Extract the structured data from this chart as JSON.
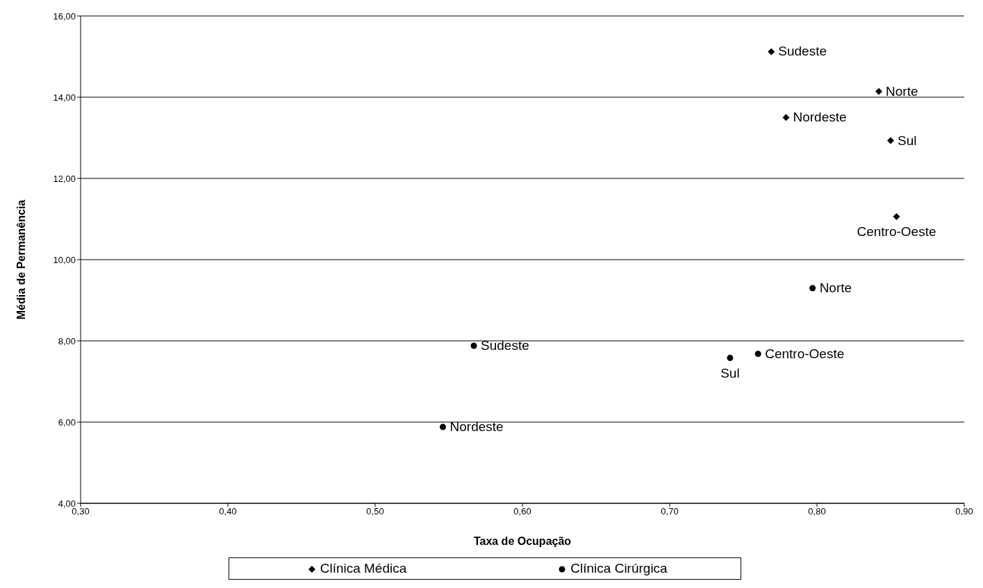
{
  "chart_data": {
    "type": "scatter",
    "xlabel": "Taxa de Ocupação",
    "ylabel": "Média de Permanência",
    "xlim": [
      0.3,
      0.9
    ],
    "ylim": [
      4,
      16
    ],
    "xticks": [
      {
        "value": 0.3,
        "label": "0,30"
      },
      {
        "value": 0.4,
        "label": "0,40"
      },
      {
        "value": 0.5,
        "label": "0,50"
      },
      {
        "value": 0.6,
        "label": "0,60"
      },
      {
        "value": 0.7,
        "label": "0,70"
      },
      {
        "value": 0.8,
        "label": "0,80"
      },
      {
        "value": 0.9,
        "label": "0,90"
      }
    ],
    "yticks": [
      {
        "value": 4,
        "label": "4,00"
      },
      {
        "value": 6,
        "label": "6,00"
      },
      {
        "value": 8,
        "label": "8,00"
      },
      {
        "value": 10,
        "label": "10,00"
      },
      {
        "value": 12,
        "label": "12,00"
      },
      {
        "value": 14,
        "label": "14,00"
      },
      {
        "value": 16,
        "label": "16,00"
      }
    ],
    "grid": "y",
    "legend": "bottom",
    "series": [
      {
        "name": "Clínica Médica",
        "color": "#000000",
        "marker": "diamond",
        "x": [
          0.769,
          0.842,
          0.779,
          0.85,
          0.854
        ],
        "values": [
          15.12,
          14.14,
          13.5,
          12.93,
          11.06
        ]
      },
      {
        "name": "Clínica Cirúrgica",
        "color": "#000000",
        "marker": "circle",
        "x": [
          0.797,
          0.567,
          0.741,
          0.76,
          0.546
        ],
        "values": [
          9.3,
          7.88,
          7.58,
          7.68,
          5.88
        ]
      }
    ],
    "annotations": [
      {
        "text": "Sudeste",
        "x": 0.769,
        "y": 15.12
      },
      {
        "text": "Norte",
        "x": 0.842,
        "y": 14.14
      },
      {
        "text": "Nordeste",
        "x": 0.779,
        "y": 13.5
      },
      {
        "text": "Sul",
        "x": 0.85,
        "y": 12.93
      },
      {
        "text": "Centro-Oeste",
        "x": 0.854,
        "y": 11.06
      },
      {
        "text": "Norte",
        "x": 0.797,
        "y": 9.3
      },
      {
        "text": "Sudeste",
        "x": 0.567,
        "y": 7.88
      },
      {
        "text": "Sul",
        "x": 0.741,
        "y": 7.58
      },
      {
        "text": "Centro-Oeste",
        "x": 0.76,
        "y": 7.68
      },
      {
        "text": "Nordeste",
        "x": 0.546,
        "y": 5.88
      }
    ]
  }
}
